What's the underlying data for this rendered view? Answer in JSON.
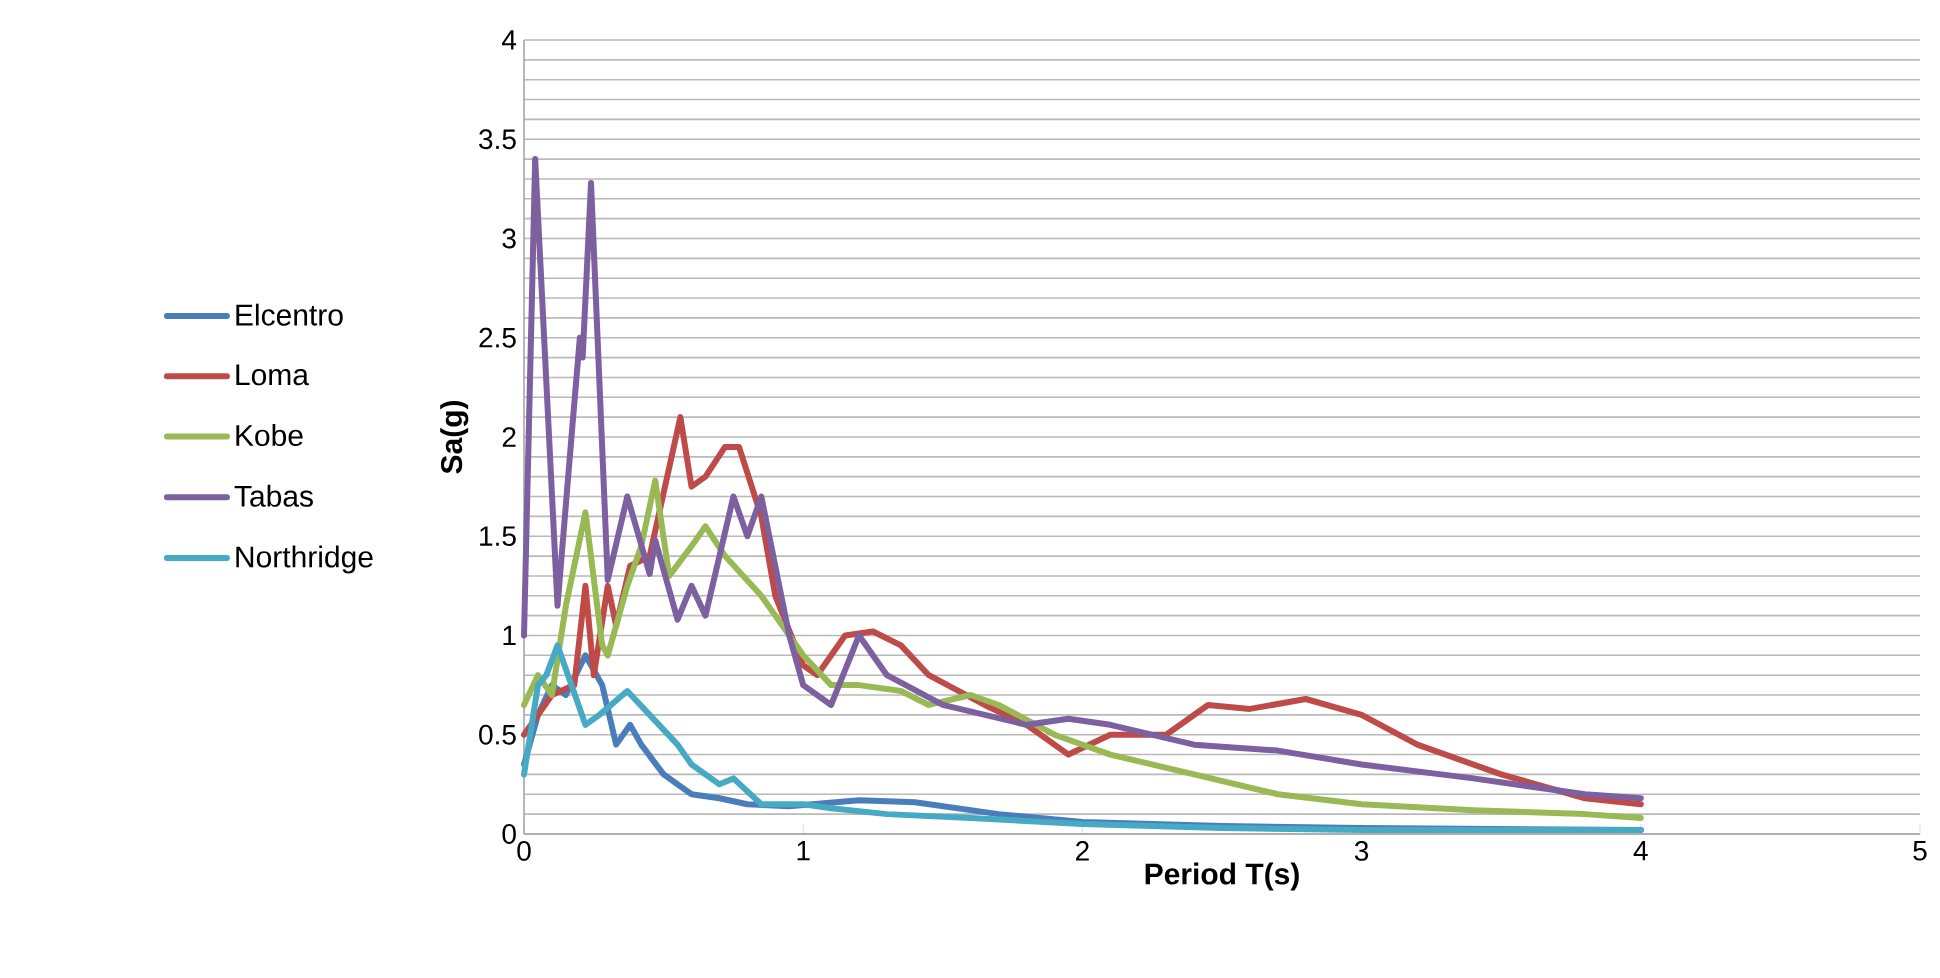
{
  "chart_data": {
    "type": "line",
    "xlabel": "Period T(s)",
    "ylabel": "Sa(g)",
    "xlim": [
      0,
      5
    ],
    "xticks": [
      0,
      1,
      2,
      3,
      4,
      5
    ],
    "ylim": [
      0,
      4
    ],
    "yticks": [
      0,
      0.5,
      1,
      1.5,
      2,
      2.5,
      3,
      3.5,
      4
    ],
    "grid": "y",
    "legend": "left",
    "marker": "none",
    "line_style": "solid",
    "series": [
      {
        "name": "Elcentro",
        "color": "#4a7ebb",
        "x": [
          0,
          0.05,
          0.1,
          0.15,
          0.22,
          0.28,
          0.33,
          0.38,
          0.42,
          0.5,
          0.6,
          0.7,
          0.8,
          0.95,
          1.2,
          1.4,
          1.7,
          2.0,
          2.5,
          3.0,
          4.0
        ],
        "values": [
          0.35,
          0.6,
          0.75,
          0.7,
          0.9,
          0.75,
          0.45,
          0.55,
          0.45,
          0.3,
          0.2,
          0.18,
          0.15,
          0.14,
          0.17,
          0.16,
          0.1,
          0.06,
          0.04,
          0.03,
          0.02
        ]
      },
      {
        "name": "Loma",
        "color": "#be4b48",
        "x": [
          0,
          0.1,
          0.18,
          0.22,
          0.25,
          0.3,
          0.33,
          0.38,
          0.45,
          0.56,
          0.6,
          0.65,
          0.72,
          0.77,
          0.85,
          0.9,
          1.0,
          1.05,
          1.15,
          1.25,
          1.35,
          1.45,
          1.65,
          1.8,
          1.95,
          2.1,
          2.3,
          2.45,
          2.6,
          2.8,
          3.0,
          3.2,
          3.5,
          3.8,
          4.0
        ],
        "values": [
          0.5,
          0.7,
          0.75,
          1.25,
          0.8,
          1.25,
          1.05,
          1.35,
          1.4,
          2.1,
          1.75,
          1.8,
          1.95,
          1.95,
          1.6,
          1.2,
          0.85,
          0.8,
          1.0,
          1.02,
          0.95,
          0.8,
          0.65,
          0.55,
          0.4,
          0.5,
          0.5,
          0.65,
          0.63,
          0.68,
          0.6,
          0.45,
          0.3,
          0.18,
          0.15
        ]
      },
      {
        "name": "Kobe",
        "color": "#98b954",
        "x": [
          0,
          0.05,
          0.1,
          0.15,
          0.22,
          0.28,
          0.3,
          0.37,
          0.42,
          0.47,
          0.52,
          0.6,
          0.65,
          0.72,
          0.85,
          0.9,
          1.0,
          1.1,
          1.2,
          1.35,
          1.45,
          1.6,
          1.7,
          1.9,
          2.1,
          2.4,
          2.7,
          3.0,
          3.4,
          3.8,
          4.0
        ],
        "values": [
          0.65,
          0.8,
          0.7,
          1.15,
          1.62,
          0.95,
          0.9,
          1.25,
          1.45,
          1.78,
          1.3,
          1.45,
          1.55,
          1.4,
          1.2,
          1.1,
          0.9,
          0.75,
          0.75,
          0.72,
          0.65,
          0.7,
          0.65,
          0.5,
          0.4,
          0.3,
          0.2,
          0.15,
          0.12,
          0.1,
          0.08
        ]
      },
      {
        "name": "Tabas",
        "color": "#7d60a0",
        "x": [
          0,
          0.04,
          0.12,
          0.17,
          0.2,
          0.21,
          0.24,
          0.3,
          0.37,
          0.45,
          0.47,
          0.55,
          0.6,
          0.65,
          0.75,
          0.8,
          0.85,
          0.9,
          0.95,
          1.0,
          1.1,
          1.2,
          1.3,
          1.5,
          1.8,
          1.95,
          2.1,
          2.4,
          2.7,
          3.0,
          3.4,
          3.8,
          4.0
        ],
        "values": [
          1.0,
          3.4,
          1.15,
          2.0,
          2.5,
          2.4,
          3.28,
          1.28,
          1.7,
          1.31,
          1.48,
          1.08,
          1.25,
          1.1,
          1.7,
          1.5,
          1.7,
          1.35,
          1.0,
          0.75,
          0.65,
          1.0,
          0.8,
          0.65,
          0.55,
          0.58,
          0.55,
          0.45,
          0.42,
          0.35,
          0.28,
          0.2,
          0.18
        ]
      },
      {
        "name": "Northridge",
        "color": "#46aac5",
        "x": [
          0,
          0.05,
          0.08,
          0.12,
          0.17,
          0.22,
          0.27,
          0.37,
          0.45,
          0.55,
          0.6,
          0.7,
          0.75,
          0.85,
          1.0,
          1.1,
          1.3,
          1.6,
          2.0,
          2.5,
          3.0,
          4.0
        ],
        "values": [
          0.3,
          0.75,
          0.8,
          0.95,
          0.75,
          0.55,
          0.6,
          0.72,
          0.6,
          0.45,
          0.35,
          0.25,
          0.28,
          0.15,
          0.15,
          0.13,
          0.1,
          0.08,
          0.05,
          0.03,
          0.02,
          0.02
        ]
      }
    ]
  }
}
